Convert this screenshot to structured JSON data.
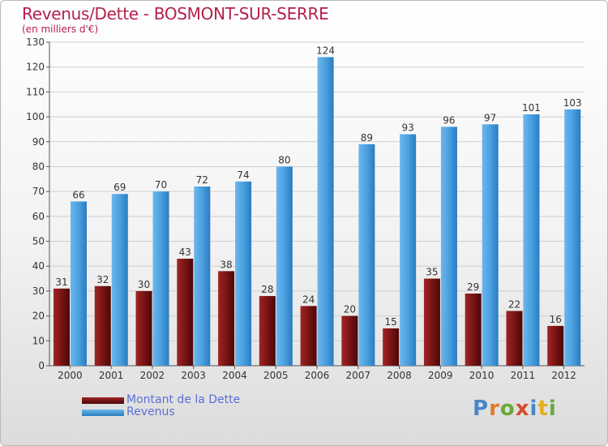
{
  "header": {
    "title": "Revenus/Dette - BOSMONT-SUR-SERRE",
    "subtitle": "(en milliers d'€)"
  },
  "logo": {
    "text": "Proxiti",
    "colors": [
      "#4a86c8",
      "#e07a2a",
      "#6aa83a",
      "#d94a2a",
      "#4a86c8",
      "#e0b020",
      "#6aa83a"
    ]
  },
  "colors": {
    "dette": "#7a1414",
    "revenus": "#4aa0e0",
    "axis_text": "#333333",
    "grid": "#cfcfcf"
  },
  "legend": {
    "dette_label": "Montant de la Dette",
    "revenus_label": "Revenus"
  },
  "chart_data": {
    "type": "bar",
    "title": "Revenus/Dette - BOSMONT-SUR-SERRE",
    "subtitle": "(en milliers d'€)",
    "categories": [
      "2000",
      "2001",
      "2002",
      "2003",
      "2004",
      "2005",
      "2006",
      "2007",
      "2008",
      "2009",
      "2010",
      "2011",
      "2012"
    ],
    "series": [
      {
        "name": "Montant de la Dette",
        "values": [
          31,
          32,
          30,
          43,
          38,
          28,
          24,
          20,
          15,
          35,
          29,
          22,
          16
        ]
      },
      {
        "name": "Revenus",
        "values": [
          66,
          69,
          70,
          72,
          74,
          80,
          124,
          89,
          93,
          96,
          97,
          101,
          103
        ]
      }
    ],
    "ylim": [
      0,
      130
    ],
    "yticks": [
      0,
      10,
      20,
      30,
      40,
      50,
      60,
      70,
      80,
      90,
      100,
      110,
      120,
      130
    ],
    "grid": true,
    "legend_position": "bottom-left"
  }
}
